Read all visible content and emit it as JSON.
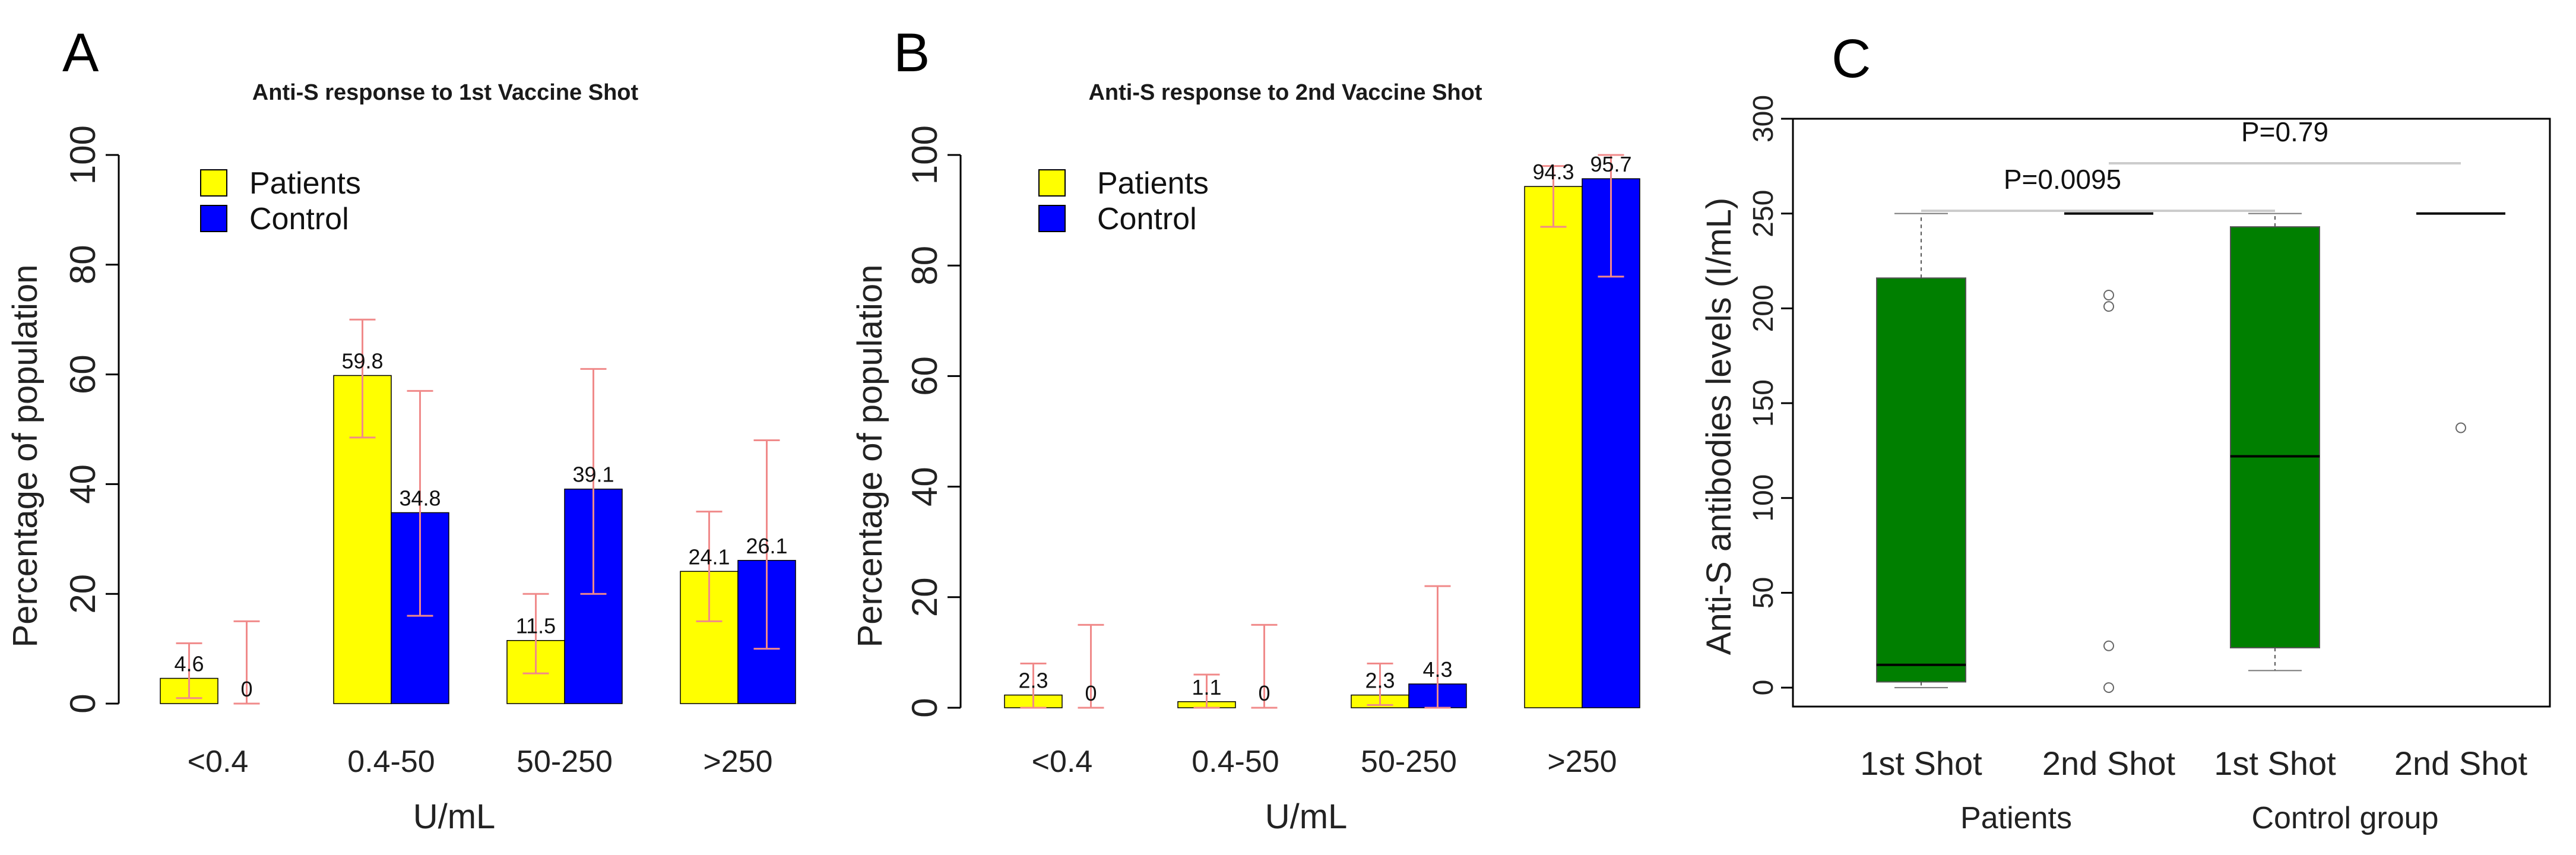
{
  "panel_labels": {
    "a": "A",
    "b": "B",
    "c": "C"
  },
  "colors": {
    "patients": "#ffff00",
    "control": "#0000ff",
    "error": "#f08a8a",
    "box": "#007f00",
    "axis": "#000000",
    "bracket": "#cccccc"
  },
  "chart_data": [
    {
      "type": "bar",
      "title": "Anti-S response to 1st Vaccine Shot",
      "xlabel": "U/mL",
      "ylabel": "Percentage of population",
      "ylim": [
        0,
        100
      ],
      "yticks": [
        "0",
        "20",
        "40",
        "60",
        "80",
        "100"
      ],
      "categories": [
        "<0.4",
        "0.4-50",
        "50-250",
        ">250"
      ],
      "legend": [
        "Patients",
        "Control"
      ],
      "series": [
        {
          "name": "Patients",
          "values": [
            4.6,
            59.8,
            11.5,
            24.1
          ],
          "labels": [
            "4.6",
            "59.8",
            "11.5",
            "24.1"
          ],
          "err_low": [
            1,
            48.5,
            5.5,
            15
          ],
          "err_high": [
            11,
            70,
            20,
            35
          ]
        },
        {
          "name": "Control",
          "values": [
            0,
            34.8,
            39.1,
            26.1
          ],
          "labels": [
            "0",
            "34.8",
            "39.1",
            "26.1"
          ],
          "err_low": [
            0,
            16,
            20,
            10
          ],
          "err_high": [
            15,
            57,
            61,
            48
          ]
        }
      ]
    },
    {
      "type": "bar",
      "title": "Anti-S response to 2nd Vaccine Shot",
      "xlabel": "U/mL",
      "ylabel": "Percentage of population",
      "ylim": [
        0,
        100
      ],
      "yticks": [
        "0",
        "20",
        "40",
        "60",
        "80",
        "100"
      ],
      "categories": [
        "<0.4",
        "0.4-50",
        "50-250",
        ">250"
      ],
      "legend": [
        "Patients",
        "Control"
      ],
      "series": [
        {
          "name": "Patients",
          "values": [
            2.3,
            1.1,
            2.3,
            94.3
          ],
          "labels": [
            "2.3",
            "1.1",
            "2.3",
            "94.3"
          ],
          "err_low": [
            0,
            0,
            0.5,
            87
          ],
          "err_high": [
            8,
            6,
            8,
            98
          ]
        },
        {
          "name": "Control",
          "values": [
            0,
            0,
            4.3,
            95.7
          ],
          "labels": [
            "0",
            "0",
            "4.3",
            "95.7"
          ],
          "err_low": [
            0,
            0,
            0,
            78
          ],
          "err_high": [
            15,
            15,
            22,
            100
          ]
        }
      ]
    },
    {
      "type": "box",
      "ylabel": "Anti-S antibodies levels (I/mL)",
      "ylim": [
        -10,
        300
      ],
      "yticks": [
        "0",
        "50",
        "100",
        "150",
        "200",
        "250",
        "300"
      ],
      "categories": [
        "1st Shot",
        "2nd Shot",
        "1st Shot",
        "2nd Shot"
      ],
      "groups": [
        "Patients",
        "Control group"
      ],
      "boxes": [
        {
          "min": 0,
          "q1": 3,
          "median": 12,
          "q3": 216,
          "max": 250,
          "outliers": []
        },
        {
          "min": 250,
          "q1": 250,
          "median": 250,
          "q3": 250,
          "max": 250,
          "outliers": [
            207,
            201,
            22,
            0
          ]
        },
        {
          "min": 9,
          "q1": 21,
          "median": 122,
          "q3": 243,
          "max": 250,
          "outliers": []
        },
        {
          "min": 250,
          "q1": 250,
          "median": 250,
          "q3": 250,
          "max": 250,
          "outliers": [
            137
          ]
        }
      ],
      "comparisons": [
        {
          "label": "P=0.0095",
          "from": 1,
          "to": 3
        },
        {
          "label": "P=0.79",
          "from": 2,
          "to": 4
        }
      ]
    }
  ]
}
